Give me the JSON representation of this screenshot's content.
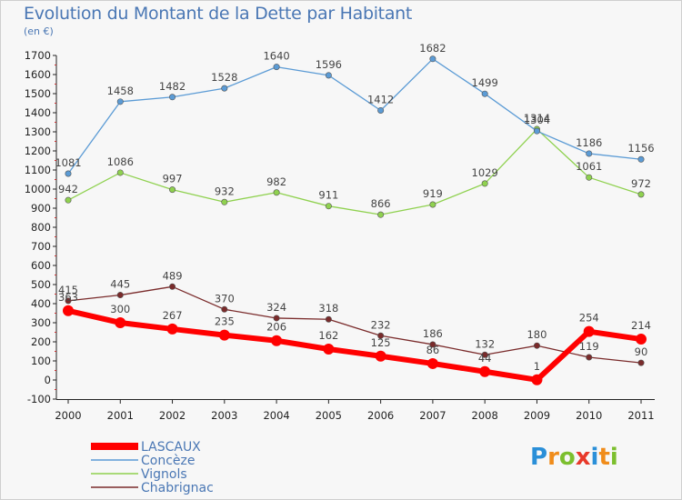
{
  "title": "Evolution du Montant de la Dette par Habitant",
  "subtitle": "(en €)",
  "logo": {
    "text": "Proxiti",
    "letters": [
      {
        "ch": "P",
        "color": "#2a8fd8"
      },
      {
        "ch": "r",
        "color": "#f08c1a"
      },
      {
        "ch": "o",
        "color": "#7cbf2e"
      },
      {
        "ch": "x",
        "color": "#e8392a"
      },
      {
        "ch": "i",
        "color": "#2a8fd8"
      },
      {
        "ch": "t",
        "color": "#f08c1a"
      },
      {
        "ch": "i",
        "color": "#7cbf2e"
      }
    ]
  },
  "chart_data": {
    "type": "line",
    "title": "Evolution du Montant de la Dette par Habitant",
    "subtitle": "(en €)",
    "x": [
      "2000",
      "2001",
      "2002",
      "2003",
      "2004",
      "2005",
      "2006",
      "2007",
      "2008",
      "2009",
      "2010",
      "2011"
    ],
    "ylim": [
      -100,
      1700
    ],
    "yticks": [
      -100,
      0,
      100,
      200,
      300,
      400,
      500,
      600,
      700,
      800,
      900,
      1000,
      1100,
      1200,
      1300,
      1400,
      1500,
      1600,
      1700
    ],
    "grid": false,
    "legend_position": "bottom-left",
    "series": [
      {
        "name": "LASCAUX",
        "color": "#ff0000",
        "values": [
          363,
          300,
          267,
          235,
          206,
          162,
          125,
          86,
          44,
          1,
          254,
          214
        ]
      },
      {
        "name": "Concèze",
        "color": "#5b9bd5",
        "values": [
          1081,
          1458,
          1482,
          1528,
          1640,
          1596,
          1412,
          1682,
          1499,
          1304,
          1186,
          1156
        ]
      },
      {
        "name": "Vignols",
        "color": "#8fd14f",
        "values": [
          942,
          1086,
          997,
          932,
          982,
          911,
          866,
          919,
          1029,
          1314,
          1061,
          972
        ]
      },
      {
        "name": "Chabrignac",
        "color": "#7a2b2b",
        "values": [
          415,
          445,
          489,
          370,
          324,
          318,
          232,
          186,
          132,
          180,
          119,
          90
        ]
      }
    ]
  }
}
